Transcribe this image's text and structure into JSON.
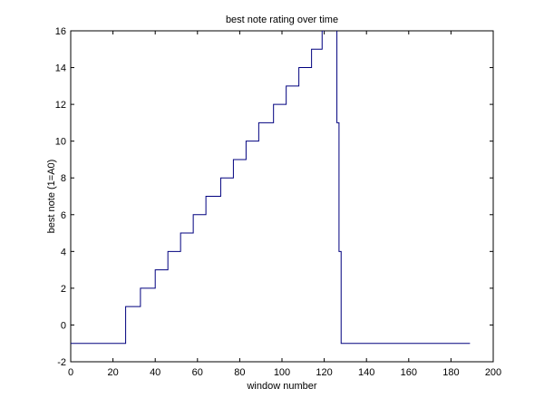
{
  "chart_data": {
    "type": "line",
    "title": "best note rating over time",
    "xlabel": "window number",
    "ylabel": "best note (1=A0)",
    "xlim": [
      0,
      200
    ],
    "ylim": [
      -2,
      16
    ],
    "xticks": [
      0,
      20,
      40,
      60,
      80,
      100,
      120,
      140,
      160,
      180,
      200
    ],
    "yticks": [
      -2,
      0,
      2,
      4,
      6,
      8,
      10,
      12,
      14,
      16
    ],
    "grid": false,
    "colors": {
      "line": "#00007f",
      "axes": "#000000",
      "background": "#ffffff"
    },
    "series": [
      {
        "x": [
          0,
          26,
          26,
          33,
          33,
          40,
          40,
          46,
          46,
          52,
          52,
          58,
          58,
          64,
          64,
          71,
          71,
          77,
          77,
          83,
          83,
          89,
          89,
          96,
          96,
          102,
          102,
          108,
          108,
          114,
          114,
          119,
          119,
          120,
          120,
          126,
          126,
          127,
          127,
          128,
          128,
          189
        ],
        "y": [
          -1,
          -1,
          1,
          1,
          2,
          2,
          3,
          3,
          4,
          4,
          5,
          5,
          6,
          6,
          7,
          7,
          8,
          8,
          9,
          9,
          10,
          10,
          11,
          11,
          12,
          12,
          13,
          13,
          14,
          14,
          15,
          15,
          16,
          16,
          17,
          17,
          11,
          11,
          4,
          4,
          -1,
          -1
        ]
      }
    ]
  }
}
